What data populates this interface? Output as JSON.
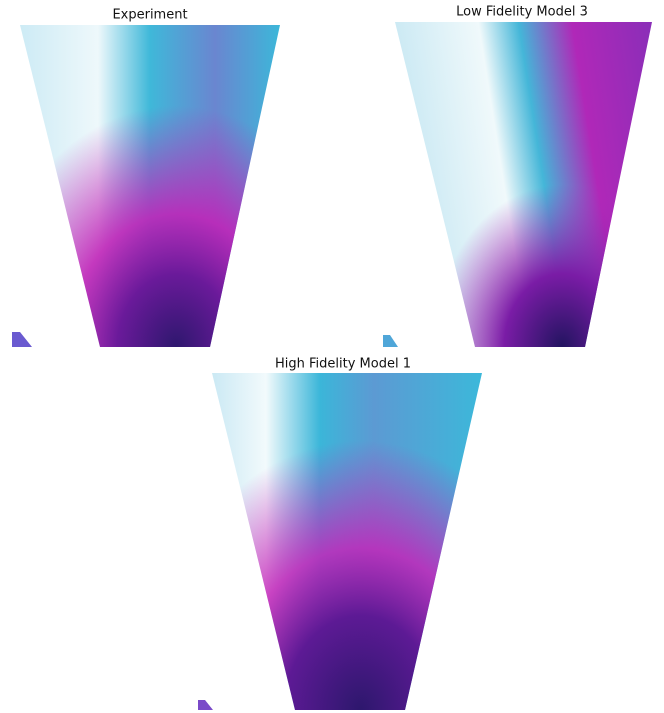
{
  "panels": [
    {
      "title": "Experiment"
    },
    {
      "title": "Low Fidelity Model 3"
    },
    {
      "title": "High Fidelity Model 1"
    }
  ]
}
